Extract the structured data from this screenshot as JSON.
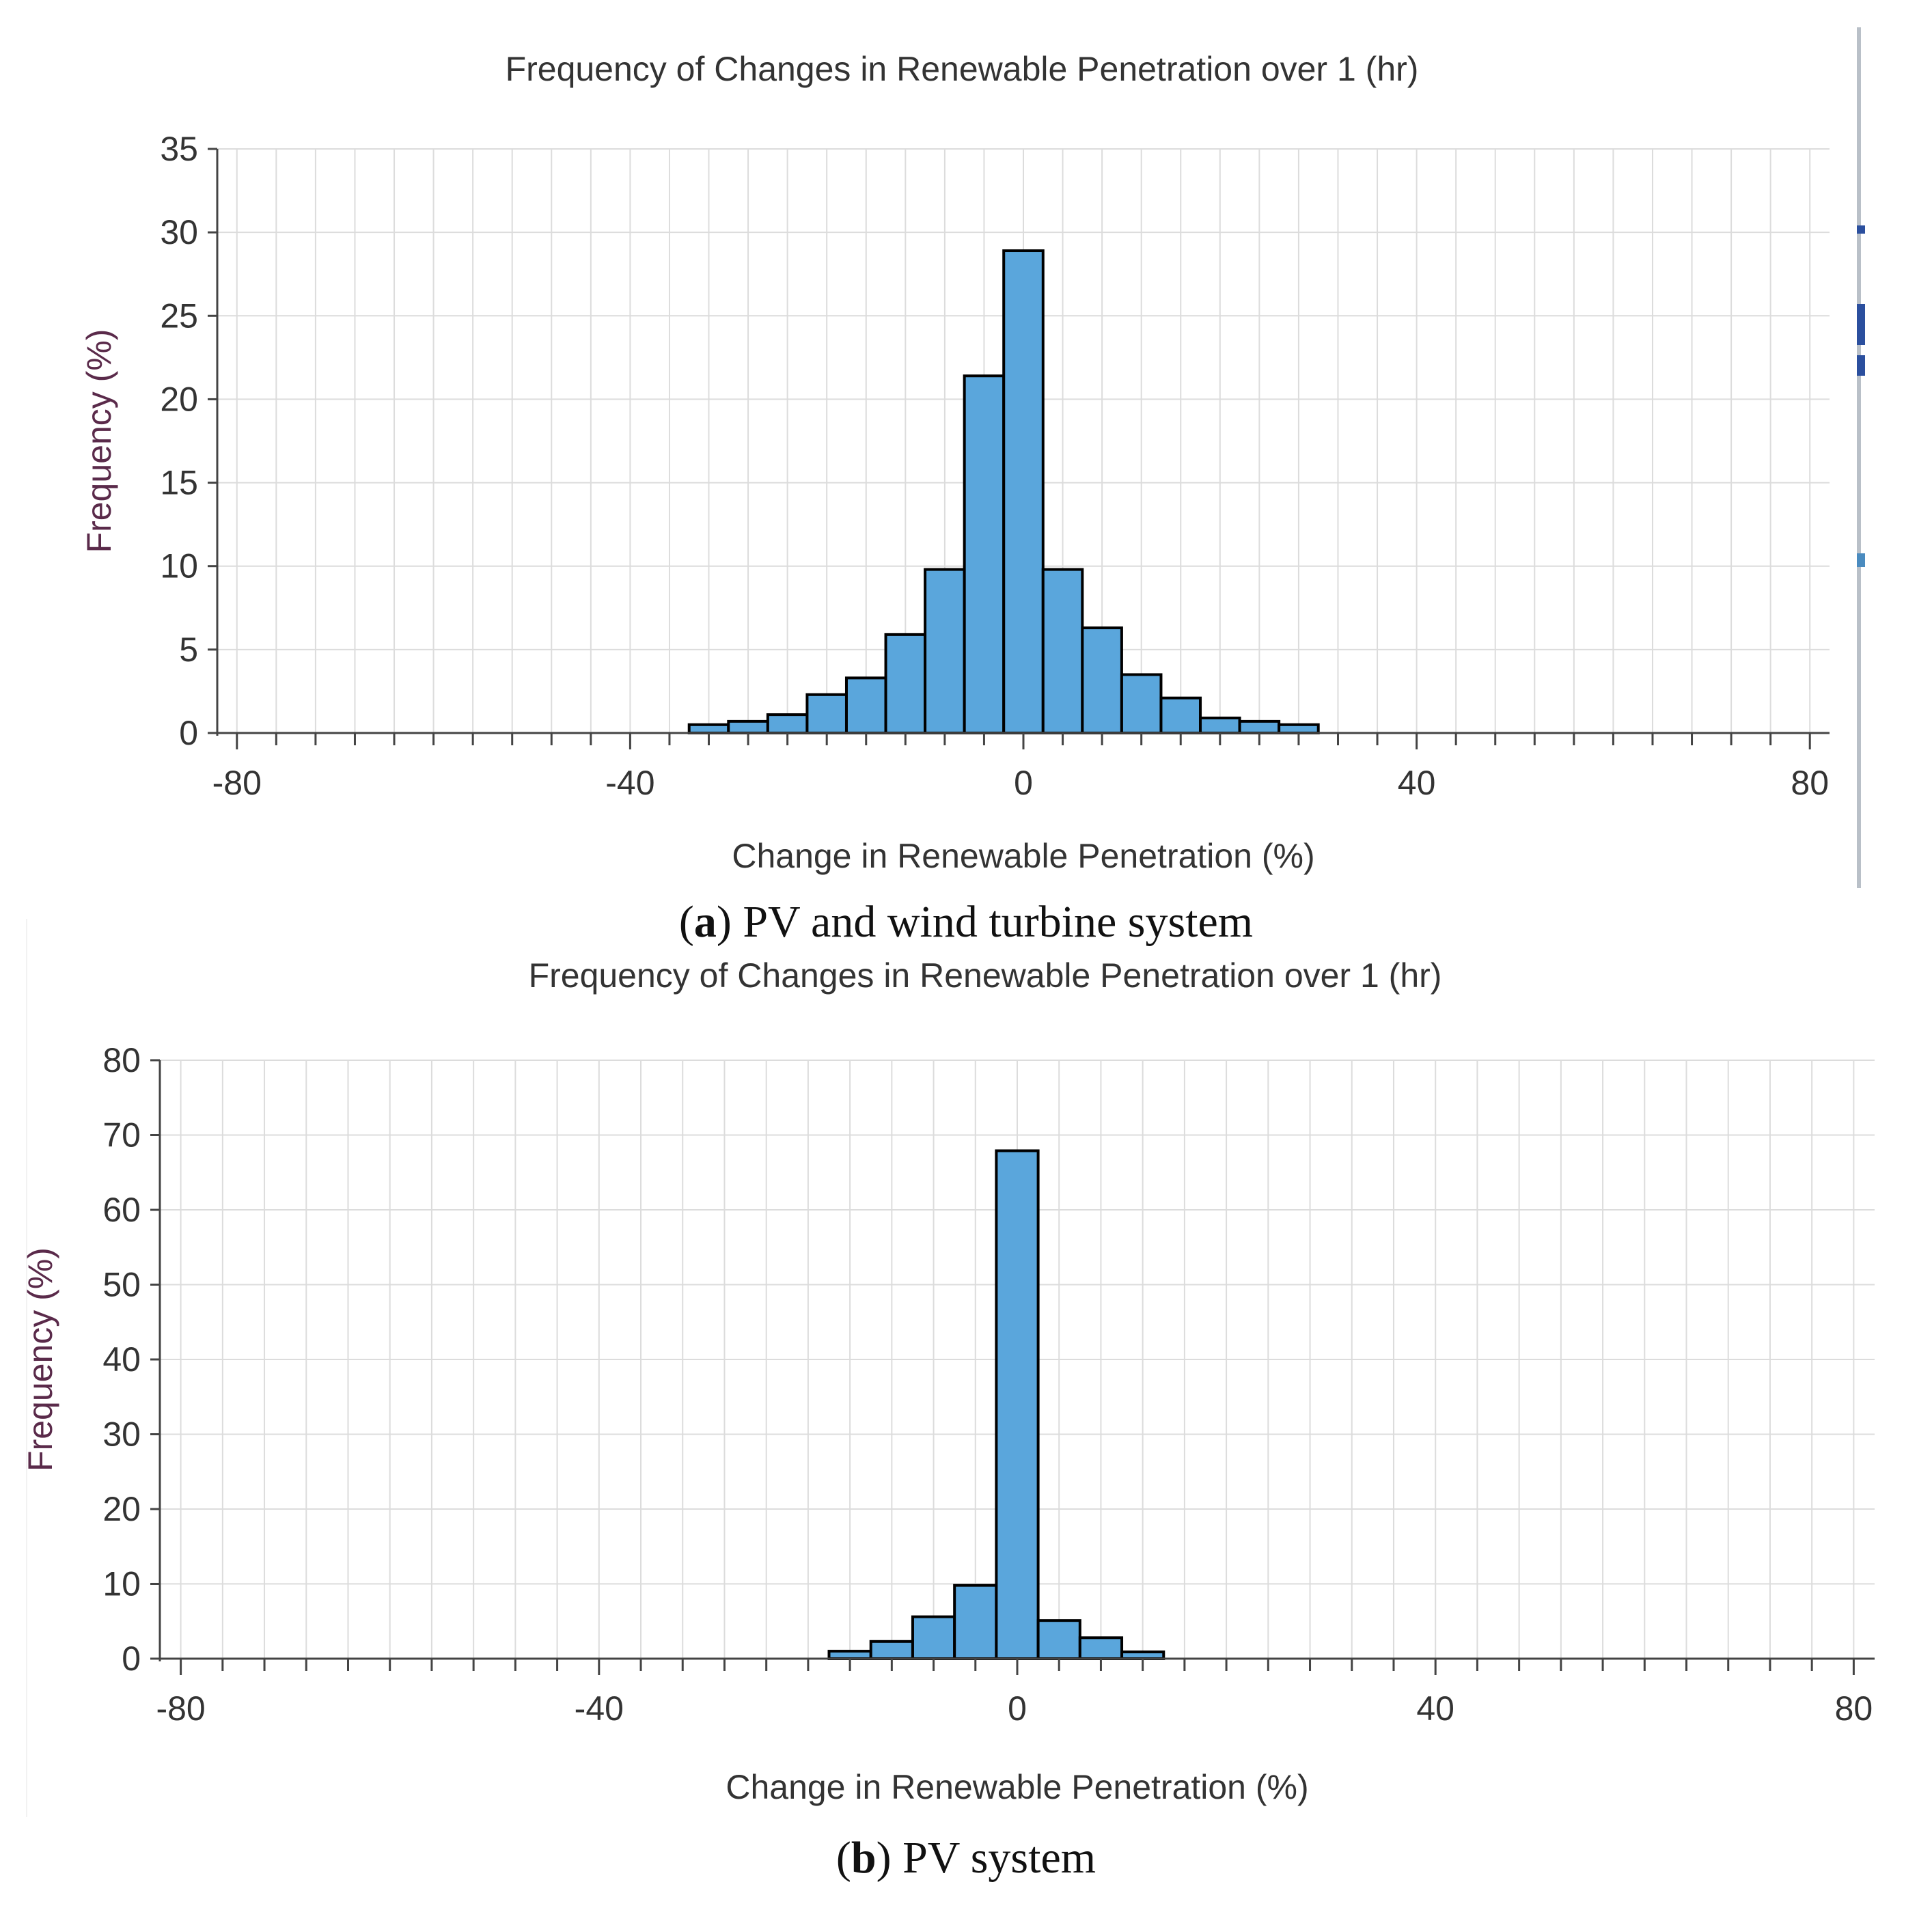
{
  "chart_data": [
    {
      "type": "bar",
      "panel": "a",
      "title": "Frequency of Changes in Renewable Penetration over 1 (hr)",
      "xlabel": "Change in Renewable Penetration (%)",
      "ylabel": "Frequency (%)",
      "xlim": [
        -82,
        82
      ],
      "ylim": [
        0,
        35
      ],
      "xticks": [
        -80,
        -40,
        0,
        40,
        80
      ],
      "yticks": [
        0,
        5,
        10,
        15,
        20,
        25,
        30,
        35
      ],
      "bin_width": 4,
      "bins": [
        {
          "x": -32,
          "value": 0.5
        },
        {
          "x": -28,
          "value": 0.7
        },
        {
          "x": -24,
          "value": 1.1
        },
        {
          "x": -20,
          "value": 2.3
        },
        {
          "x": -16,
          "value": 3.3
        },
        {
          "x": -12,
          "value": 5.9
        },
        {
          "x": -8,
          "value": 9.8
        },
        {
          "x": -4,
          "value": 21.4
        },
        {
          "x": 0,
          "value": 28.9
        },
        {
          "x": 4,
          "value": 9.8
        },
        {
          "x": 8,
          "value": 6.3
        },
        {
          "x": 12,
          "value": 3.5
        },
        {
          "x": 16,
          "value": 2.1
        },
        {
          "x": 20,
          "value": 0.9
        },
        {
          "x": 24,
          "value": 0.7
        },
        {
          "x": 28,
          "value": 0.5
        }
      ],
      "caption_label": "a",
      "caption_text": ") PV and wind turbine system",
      "bar_color": "#5aa6dc"
    },
    {
      "type": "bar",
      "panel": "b",
      "title": "Frequency of Changes in Renewable Penetration over 1 (hr)",
      "xlabel": "Change in Renewable Penetration (%)",
      "ylabel": "Frequency (%)",
      "xlim": [
        -82,
        82
      ],
      "ylim": [
        0,
        80
      ],
      "xticks": [
        -80,
        -40,
        0,
        40,
        80
      ],
      "yticks": [
        0,
        10,
        20,
        30,
        40,
        50,
        60,
        70,
        80
      ],
      "bin_width": 4,
      "bins": [
        {
          "x": -16,
          "value": 1.0
        },
        {
          "x": -12,
          "value": 2.3
        },
        {
          "x": -8,
          "value": 5.6
        },
        {
          "x": -4,
          "value": 9.8
        },
        {
          "x": 0,
          "value": 67.9
        },
        {
          "x": 4,
          "value": 5.1
        },
        {
          "x": 8,
          "value": 2.8
        },
        {
          "x": 12,
          "value": 0.9
        }
      ],
      "caption_label": "b",
      "caption_text": ") PV system",
      "bar_color": "#5aa6dc"
    }
  ],
  "captions": {
    "a": {
      "open": "(",
      "label": "a",
      "text": ") PV and wind turbine system"
    },
    "b": {
      "open": "(",
      "label": "b",
      "text": ") PV system"
    }
  }
}
